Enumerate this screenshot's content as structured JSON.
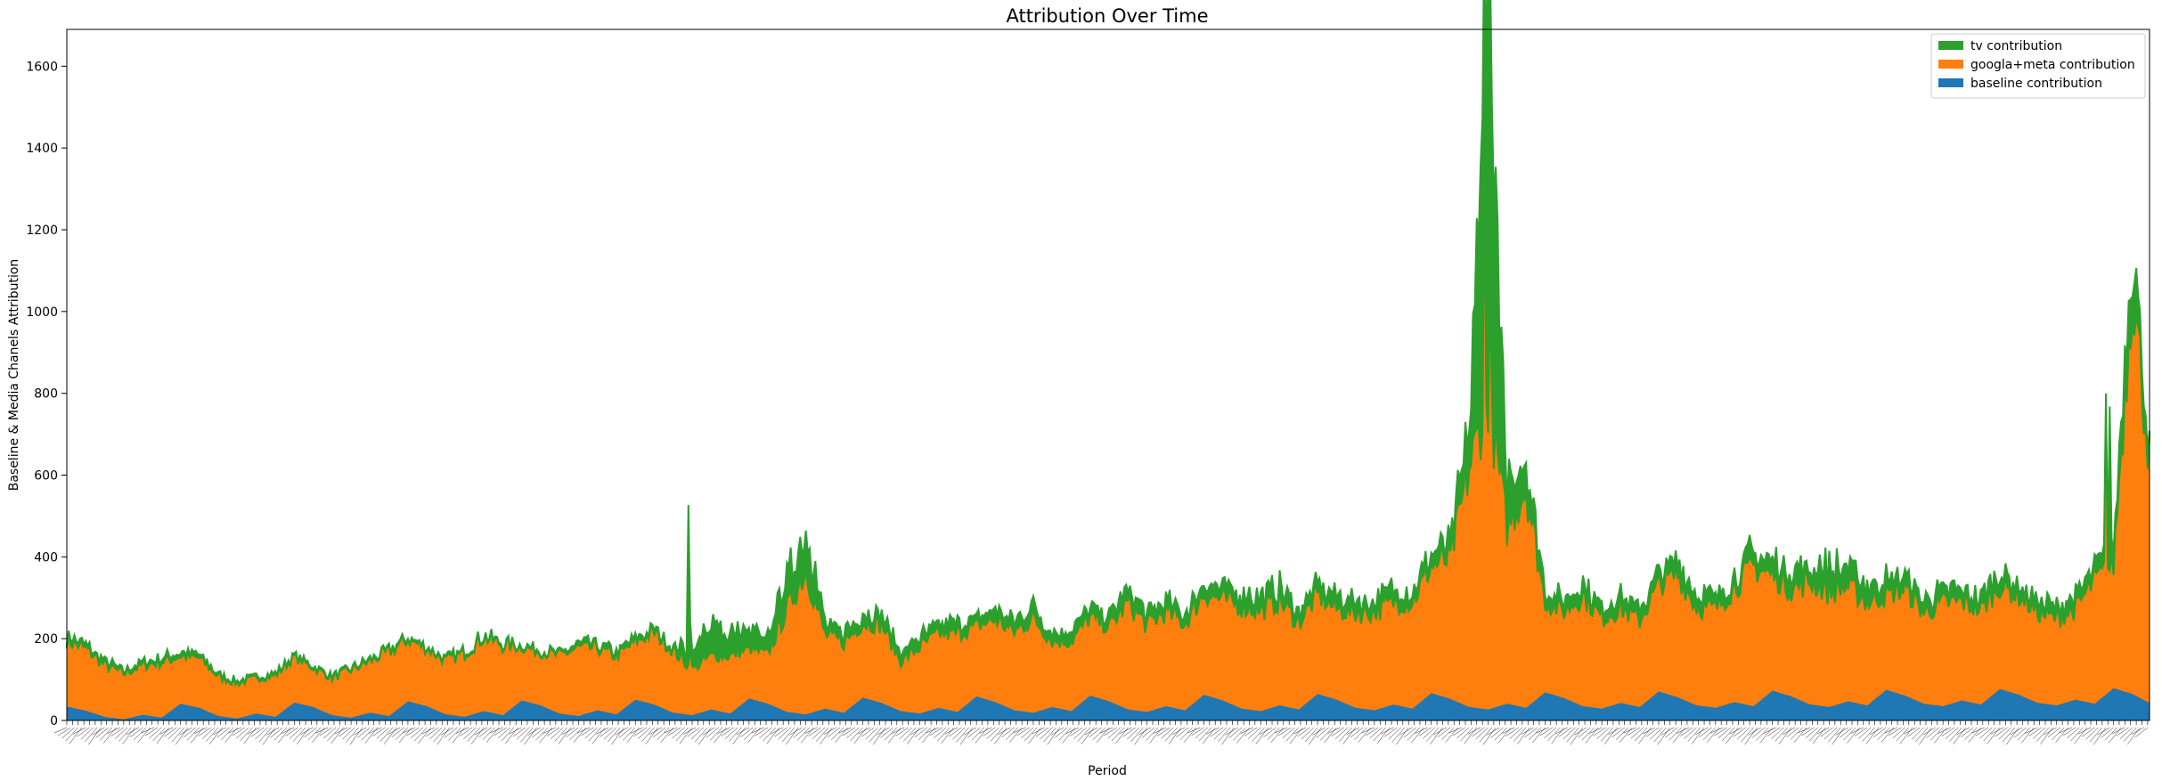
{
  "chart_data": {
    "type": "area",
    "stacked": true,
    "title": "Attribution Over Time",
    "xlabel": "Period",
    "ylabel": "Baseline & Media Chanels Attribution",
    "ylim": [
      0,
      1690
    ],
    "y_ticks": [
      0,
      200,
      400,
      600,
      800,
      1000,
      1200,
      1400,
      1600
    ],
    "legend_position": "top-right",
    "grid": false,
    "x_tick_labels_note": "dense rotated period labels, illegible",
    "period_count": 1100,
    "series": [
      {
        "name": "baseline contribution",
        "color": "#1f77b4",
        "x": [
          0,
          10,
          20,
          30,
          40,
          50,
          60,
          70,
          80,
          90,
          100,
          110,
          120,
          130,
          140,
          150,
          160,
          170,
          180,
          190,
          200,
          210,
          220,
          230,
          240,
          250,
          260,
          270,
          280,
          290,
          300,
          310,
          320,
          330,
          340,
          350,
          360,
          370,
          380,
          390,
          400,
          410,
          420,
          430,
          440,
          450,
          460,
          470,
          480,
          490,
          500,
          510,
          520,
          530,
          540,
          550,
          560,
          570,
          580,
          590,
          600,
          610,
          620,
          630,
          640,
          650,
          660,
          670,
          680,
          690,
          700,
          710,
          720,
          730,
          740,
          750,
          760,
          770,
          780,
          790,
          800,
          810,
          820,
          830,
          840,
          850,
          860,
          870,
          880,
          890,
          900,
          910,
          920,
          930,
          940,
          950,
          960,
          970,
          980,
          990,
          1000,
          1010,
          1020,
          1030,
          1040,
          1050,
          1060,
          1070,
          1080,
          1090,
          1099
        ],
        "values": [
          35,
          25,
          10,
          4,
          15,
          8,
          42,
          32,
          12,
          6,
          18,
          10,
          45,
          34,
          14,
          8,
          20,
          12,
          48,
          36,
          16,
          10,
          24,
          14,
          50,
          38,
          18,
          12,
          26,
          16,
          52,
          40,
          20,
          14,
          28,
          18,
          55,
          42,
          22,
          16,
          30,
          20,
          57,
          44,
          24,
          18,
          32,
          22,
          60,
          46,
          26,
          20,
          34,
          24,
          62,
          48,
          28,
          22,
          36,
          26,
          64,
          50,
          30,
          24,
          38,
          28,
          66,
          52,
          32,
          26,
          40,
          30,
          68,
          54,
          34,
          28,
          42,
          32,
          70,
          56,
          36,
          30,
          44,
          34,
          72,
          58,
          38,
          32,
          46,
          36,
          74,
          60,
          40,
          34,
          48,
          38,
          76,
          62,
          42,
          36,
          50,
          40,
          78,
          64,
          44,
          38,
          52,
          42,
          80,
          66,
          44
        ]
      },
      {
        "name": "googla+meta contribution",
        "color": "#ff7f0e",
        "x": [
          0,
          10,
          20,
          30,
          40,
          50,
          60,
          70,
          80,
          90,
          100,
          110,
          120,
          130,
          140,
          150,
          160,
          170,
          180,
          190,
          200,
          210,
          220,
          230,
          240,
          250,
          260,
          270,
          280,
          290,
          300,
          310,
          320,
          330,
          340,
          350,
          360,
          370,
          380,
          390,
          400,
          410,
          420,
          430,
          440,
          450,
          460,
          470,
          480,
          490,
          500,
          510,
          520,
          530,
          540,
          550,
          560,
          570,
          580,
          590,
          600,
          610,
          620,
          630,
          640,
          650,
          660,
          670,
          680,
          690,
          700,
          710,
          720,
          730,
          740,
          750,
          760,
          770,
          780,
          790,
          800,
          810,
          820,
          830,
          840,
          850,
          860,
          870,
          880,
          890,
          900,
          910,
          920,
          930,
          940,
          950,
          960,
          970,
          980,
          990,
          1000,
          1010,
          1020,
          1030,
          1040,
          1050,
          1060,
          1070,
          1080,
          1090,
          1099
        ],
        "values": [
          160,
          150,
          125,
          110,
          120,
          135,
          115,
          120,
          95,
          85,
          85,
          100,
          110,
          95,
          90,
          115,
          125,
          155,
          150,
          140,
          130,
          155,
          180,
          170,
          130,
          130,
          140,
          165,
          150,
          140,
          140,
          175,
          150,
          110,
          130,
          140,
          120,
          120,
          250,
          350,
          180,
          170,
          180,
          190,
          120,
          160,
          180,
          190,
          170,
          200,
          190,
          230,
          160,
          170,
          190,
          180,
          260,
          210,
          230,
          210,
          245,
          245,
          250,
          245,
          255,
          210,
          240,
          220,
          230,
          240,
          250,
          260,
          310,
          340,
          580,
          760,
          430,
          540,
          220,
          210,
          270,
          220,
          230,
          210,
          260,
          300,
          240,
          240,
          280,
          340,
          280,
          260,
          300,
          280,
          280,
          250,
          230,
          260,
          220,
          250,
          240,
          230,
          250,
          240,
          220,
          210,
          220,
          300,
          300,
          1000,
          590
        ]
      },
      {
        "name": "tv contribution",
        "color": "#2ca02c",
        "x": [
          0,
          10,
          20,
          30,
          40,
          50,
          60,
          70,
          80,
          90,
          100,
          110,
          120,
          130,
          140,
          150,
          160,
          170,
          180,
          190,
          200,
          210,
          220,
          230,
          240,
          250,
          260,
          270,
          280,
          290,
          300,
          310,
          320,
          330,
          340,
          350,
          360,
          370,
          380,
          390,
          400,
          410,
          420,
          430,
          440,
          450,
          460,
          470,
          480,
          490,
          500,
          510,
          520,
          530,
          540,
          550,
          560,
          570,
          580,
          590,
          600,
          610,
          620,
          630,
          640,
          650,
          660,
          670,
          680,
          690,
          700,
          710,
          720,
          730,
          740,
          750,
          760,
          770,
          780,
          790,
          800,
          810,
          820,
          830,
          840,
          850,
          860,
          870,
          880,
          890,
          900,
          910,
          920,
          930,
          940,
          950,
          960,
          970,
          980,
          990,
          1000,
          1010,
          1020,
          1030,
          1040,
          1050,
          1060,
          1070,
          1080,
          1090,
          1099
        ],
        "values": [
          10,
          10,
          10,
          8,
          8,
          10,
          10,
          10,
          5,
          5,
          5,
          5,
          5,
          5,
          5,
          5,
          5,
          5,
          5,
          5,
          5,
          5,
          5,
          5,
          5,
          5,
          5,
          10,
          10,
          10,
          10,
          10,
          10,
          60,
          80,
          60,
          50,
          40,
          70,
          120,
          25,
          30,
          25,
          25,
          20,
          25,
          25,
          25,
          20,
          25,
          25,
          30,
          20,
          25,
          25,
          25,
          30,
          25,
          25,
          25,
          30,
          25,
          30,
          30,
          35,
          30,
          30,
          30,
          30,
          30,
          30,
          30,
          30,
          40,
          100,
          800,
          120,
          60,
          30,
          30,
          30,
          30,
          30,
          30,
          30,
          30,
          30,
          30,
          30,
          40,
          40,
          40,
          40,
          60,
          60,
          40,
          40,
          30,
          30,
          30,
          30,
          30,
          30,
          30,
          30,
          30,
          30,
          40,
          40,
          130,
          20
        ]
      }
    ]
  }
}
